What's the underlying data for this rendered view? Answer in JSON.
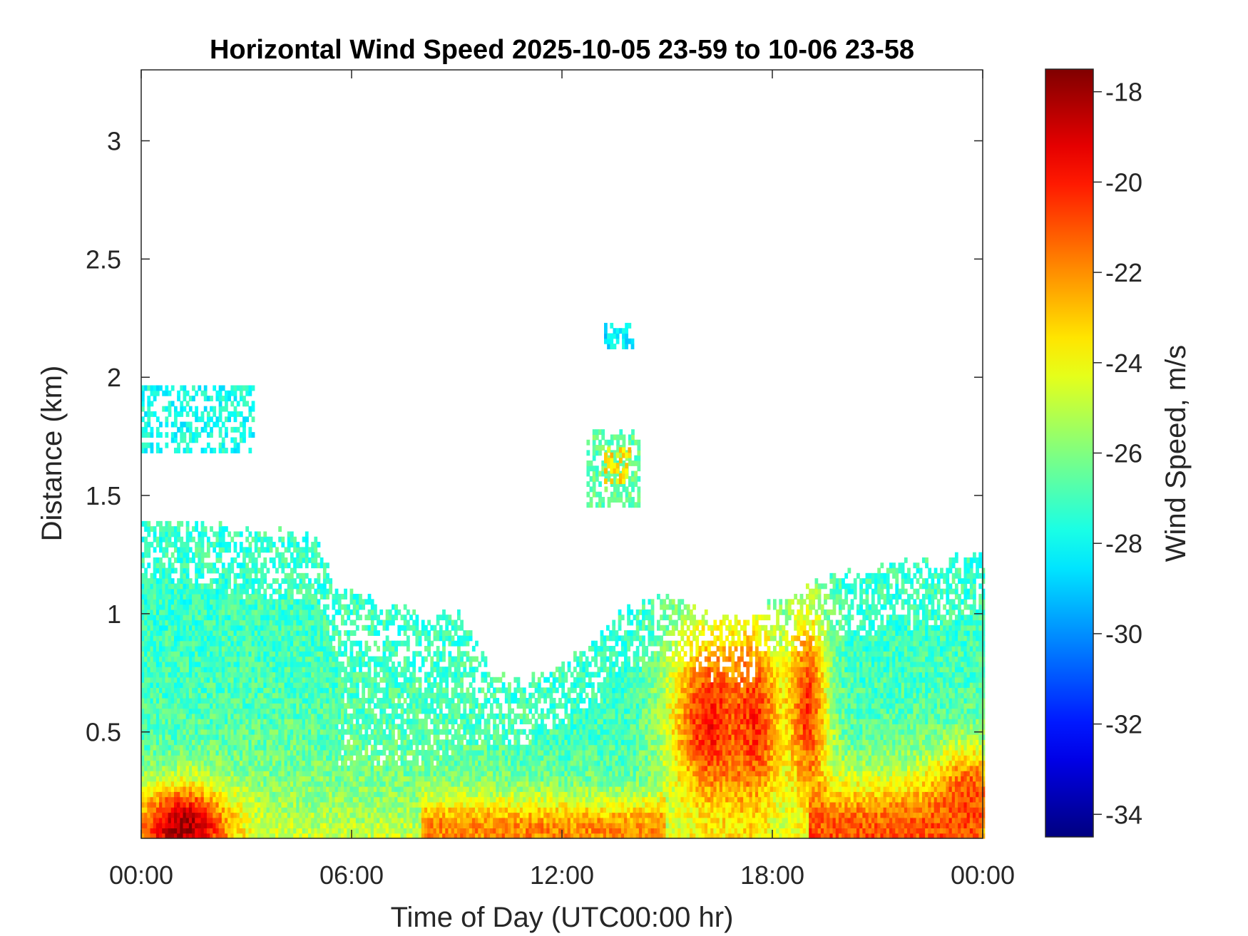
{
  "chart_data": {
    "type": "heatmap",
    "title": "Horizontal Wind Speed 2025-10-05 23-59 to 10-06 23-58",
    "xlabel": "Time of Day (UTC00:00 hr)",
    "ylabel": "Distance (km)",
    "colorbar_label": "Wind Speed, m/s",
    "x_unit": "hours",
    "xlim": [
      0,
      24
    ],
    "ylim": [
      0.05,
      3.3
    ],
    "clim": [
      -34.5,
      -17.5
    ],
    "colormap": "jet",
    "grid": false,
    "x_ticks": [
      {
        "value": 0,
        "label": "00:00"
      },
      {
        "value": 6,
        "label": "06:00"
      },
      {
        "value": 12,
        "label": "12:00"
      },
      {
        "value": 18,
        "label": "18:00"
      },
      {
        "value": 24,
        "label": "00:00"
      }
    ],
    "y_ticks": [
      {
        "value": 0.5,
        "label": "0.5"
      },
      {
        "value": 1,
        "label": "1"
      },
      {
        "value": 1.5,
        "label": "1.5"
      },
      {
        "value": 2,
        "label": "2"
      },
      {
        "value": 2.5,
        "label": "2.5"
      },
      {
        "value": 3,
        "label": "3"
      }
    ],
    "colorbar_ticks": [
      {
        "value": -18,
        "label": "-18"
      },
      {
        "value": -20,
        "label": "-20"
      },
      {
        "value": -22,
        "label": "-22"
      },
      {
        "value": -24,
        "label": "-24"
      },
      {
        "value": -26,
        "label": "-26"
      },
      {
        "value": -28,
        "label": "-28"
      },
      {
        "value": -30,
        "label": "-30"
      },
      {
        "value": -32,
        "label": "-32"
      },
      {
        "value": -34,
        "label": "-34"
      }
    ],
    "data_top_km": [
      [
        0,
        1.38
      ],
      [
        1,
        1.38
      ],
      [
        2,
        1.36
      ],
      [
        3,
        1.33
      ],
      [
        4,
        1.33
      ],
      [
        5,
        1.3
      ],
      [
        5.5,
        1.12
      ],
      [
        6,
        1.08
      ],
      [
        7,
        1.02
      ],
      [
        8,
        1.0
      ],
      [
        9,
        0.98
      ],
      [
        9.5,
        0.9
      ],
      [
        10,
        0.72
      ],
      [
        11,
        0.7
      ],
      [
        12,
        0.76
      ],
      [
        13,
        0.88
      ],
      [
        14,
        1.02
      ],
      [
        15,
        1.08
      ],
      [
        16,
        0.98
      ],
      [
        17,
        0.95
      ],
      [
        18,
        1.02
      ],
      [
        19,
        1.12
      ],
      [
        20,
        1.15
      ],
      [
        21,
        1.18
      ],
      [
        22,
        1.2
      ],
      [
        23,
        1.22
      ],
      [
        24,
        1.25
      ]
    ],
    "upper_patches": [
      {
        "t0": 0,
        "t1": 3.2,
        "z0": 1.68,
        "z1": 1.95,
        "value": -27.8
      },
      {
        "t0": 12.7,
        "t1": 14.2,
        "z0": 1.45,
        "z1": 1.78,
        "value": -26.5
      },
      {
        "t0": 13.2,
        "t1": 13.9,
        "z0": 1.55,
        "z1": 1.7,
        "value": -23.5
      },
      {
        "t0": 13.2,
        "t1": 14.0,
        "z0": 2.12,
        "z1": 2.22,
        "value": -28.5
      }
    ],
    "surface_features": [
      {
        "t": 1.2,
        "z": 0.1,
        "wt": 1.3,
        "wz": 0.17,
        "value": -18.0
      },
      {
        "t": 16.2,
        "z": 0.55,
        "wt": 1.2,
        "wz": 0.42,
        "value": -20.0
      },
      {
        "t": 17.5,
        "z": 0.55,
        "wt": 0.8,
        "wz": 0.4,
        "value": -20.3
      },
      {
        "t": 19.0,
        "z": 0.6,
        "wt": 0.6,
        "wz": 0.45,
        "value": -20.5
      },
      {
        "t": 23.6,
        "z": 0.22,
        "wt": 1.0,
        "wz": 0.2,
        "value": -20.8
      }
    ]
  }
}
